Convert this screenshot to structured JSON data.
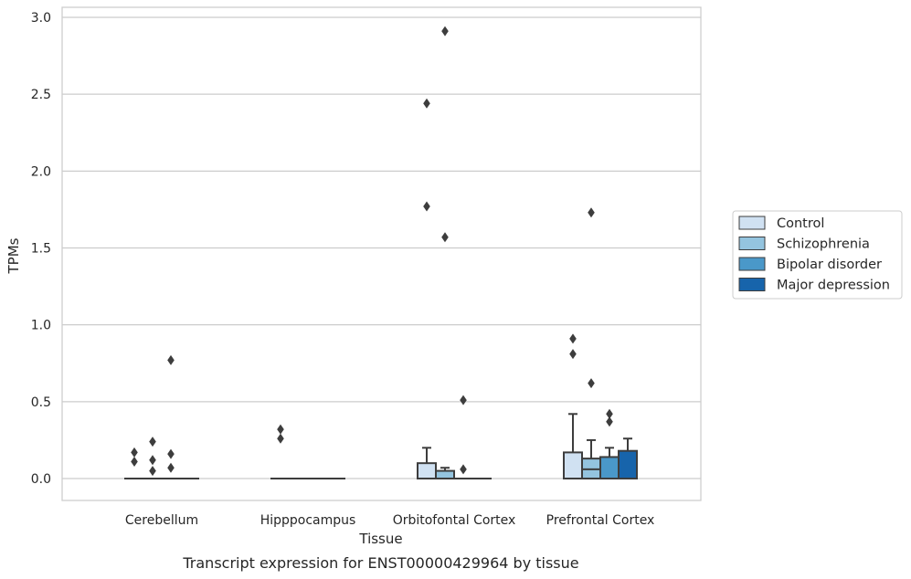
{
  "caption": "Transcript expression for ENST00000429964 by tissue",
  "chart_data": {
    "type": "boxplot",
    "title": "",
    "xlabel": "Tissue",
    "ylabel": "TPMs",
    "ylim": [
      -0.14,
      3.06
    ],
    "yticks": [
      "0.0",
      "0.5",
      "1.0",
      "1.5",
      "2.0",
      "2.5",
      "3.0"
    ],
    "grid": true,
    "legend_position": "right",
    "categories": [
      "Cerebellum",
      "Hipppocampus",
      "Orbitofontal Cortex",
      "Prefrontal Cortex"
    ],
    "series": [
      {
        "name": "Control",
        "color": "#d0e1f2",
        "boxes": [
          {
            "q1": 0,
            "median": 0,
            "q3": 0,
            "whisker_low": 0,
            "whisker_high": 0,
            "outliers": [
              0.17,
              0.11
            ]
          },
          {
            "q1": 0,
            "median": 0,
            "q3": 0,
            "whisker_low": 0,
            "whisker_high": 0,
            "outliers": [
              0.32,
              0.26
            ]
          },
          {
            "q1": 0,
            "median": 0,
            "q3": 0.1,
            "whisker_low": 0,
            "whisker_high": 0.2,
            "outliers": [
              2.44,
              1.77
            ]
          },
          {
            "q1": 0,
            "median": 0,
            "q3": 0.17,
            "whisker_low": 0,
            "whisker_high": 0.42,
            "outliers": [
              0.91,
              0.81
            ]
          }
        ]
      },
      {
        "name": "Schizophrenia",
        "color": "#94c4df",
        "boxes": [
          {
            "q1": 0,
            "median": 0,
            "q3": 0,
            "whisker_low": 0,
            "whisker_high": 0,
            "outliers": [
              0.24,
              0.12,
              0.05
            ]
          },
          {
            "q1": 0,
            "median": 0,
            "q3": 0,
            "whisker_low": 0,
            "whisker_high": 0,
            "outliers": []
          },
          {
            "q1": 0,
            "median": 0,
            "q3": 0.05,
            "whisker_low": 0,
            "whisker_high": 0.07,
            "outliers": [
              2.91,
              1.57
            ]
          },
          {
            "q1": 0,
            "median": 0.06,
            "q3": 0.13,
            "whisker_low": 0,
            "whisker_high": 0.25,
            "outliers": [
              1.73,
              0.62
            ]
          }
        ]
      },
      {
        "name": "Bipolar disorder",
        "color": "#4a98c9",
        "boxes": [
          {
            "q1": 0,
            "median": 0,
            "q3": 0,
            "whisker_low": 0,
            "whisker_high": 0,
            "outliers": [
              0.77,
              0.16,
              0.07
            ]
          },
          {
            "q1": 0,
            "median": 0,
            "q3": 0,
            "whisker_low": 0,
            "whisker_high": 0,
            "outliers": []
          },
          {
            "q1": 0,
            "median": 0,
            "q3": 0,
            "whisker_low": 0,
            "whisker_high": 0,
            "outliers": [
              0.51,
              0.06
            ]
          },
          {
            "q1": 0,
            "median": 0,
            "q3": 0.14,
            "whisker_low": 0,
            "whisker_high": 0.2,
            "outliers": [
              0.42,
              0.37
            ]
          }
        ]
      },
      {
        "name": "Major depression",
        "color": "#1764ab",
        "boxes": [
          {
            "q1": 0,
            "median": 0,
            "q3": 0,
            "whisker_low": 0,
            "whisker_high": 0,
            "outliers": []
          },
          {
            "q1": 0,
            "median": 0,
            "q3": 0,
            "whisker_low": 0,
            "whisker_high": 0,
            "outliers": []
          },
          {
            "q1": 0,
            "median": 0,
            "q3": 0,
            "whisker_low": 0,
            "whisker_high": 0,
            "outliers": []
          },
          {
            "q1": 0,
            "median": 0,
            "q3": 0.18,
            "whisker_low": 0,
            "whisker_high": 0.26,
            "outliers": []
          }
        ]
      }
    ]
  }
}
